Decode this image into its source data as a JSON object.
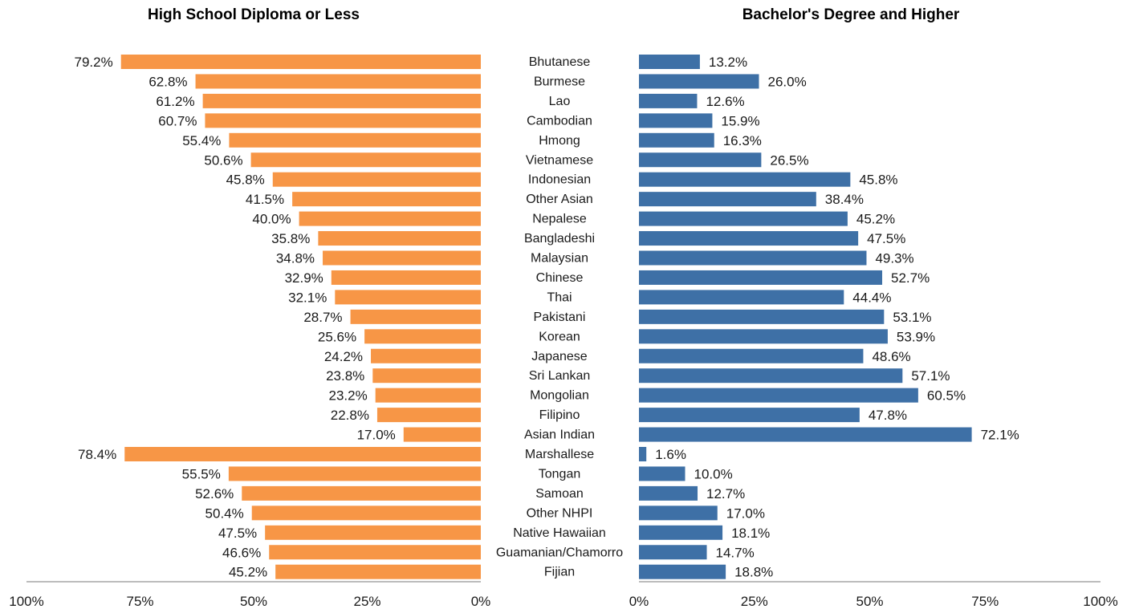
{
  "chart_data": [
    {
      "type": "bar",
      "orientation": "horizontal",
      "direction": "reversed",
      "title": "High School Diploma or Less",
      "categories": [
        "Bhutanese",
        "Burmese",
        "Lao",
        "Cambodian",
        "Hmong",
        "Vietnamese",
        "Indonesian",
        "Other Asian",
        "Nepalese",
        "Bangladeshi",
        "Malaysian",
        "Chinese",
        "Thai",
        "Pakistani",
        "Korean",
        "Japanese",
        "Sri Lankan",
        "Mongolian",
        "Filipino",
        "Asian Indian",
        "Marshallese",
        "Tongan",
        "Samoan",
        "Other NHPI",
        "Native Hawaiian",
        "Guamanian/Chamorro",
        "Fijian"
      ],
      "values": [
        79.2,
        62.8,
        61.2,
        60.7,
        55.4,
        50.6,
        45.8,
        41.5,
        40.0,
        35.8,
        34.8,
        32.9,
        32.1,
        28.7,
        25.6,
        24.2,
        23.8,
        23.2,
        22.8,
        17.0,
        78.4,
        55.5,
        52.6,
        50.4,
        47.5,
        46.6,
        45.2
      ],
      "labels": [
        "79.2%",
        "62.8%",
        "61.2%",
        "60.7%",
        "55.4%",
        "50.6%",
        "45.8%",
        "41.5%",
        "40.0%",
        "35.8%",
        "34.8%",
        "32.9%",
        "32.1%",
        "28.7%",
        "25.6%",
        "24.2%",
        "23.8%",
        "23.2%",
        "22.8%",
        "17.0%",
        "78.4%",
        "55.5%",
        "52.6%",
        "50.4%",
        "47.5%",
        "46.6%",
        "45.2%"
      ],
      "color": "#F79646",
      "xlim": [
        0,
        100
      ],
      "ticks": [
        "100%",
        "75%",
        "50%",
        "25%",
        "0%"
      ],
      "grid": false
    },
    {
      "type": "bar",
      "orientation": "horizontal",
      "title": "Bachelor's Degree and Higher",
      "categories": [
        "Bhutanese",
        "Burmese",
        "Lao",
        "Cambodian",
        "Hmong",
        "Vietnamese",
        "Indonesian",
        "Other Asian",
        "Nepalese",
        "Bangladeshi",
        "Malaysian",
        "Chinese",
        "Thai",
        "Pakistani",
        "Korean",
        "Japanese",
        "Sri Lankan",
        "Mongolian",
        "Filipino",
        "Asian Indian",
        "Marshallese",
        "Tongan",
        "Samoan",
        "Other NHPI",
        "Native Hawaiian",
        "Guamanian/Chamorro",
        "Fijian"
      ],
      "values": [
        13.2,
        26.0,
        12.6,
        15.9,
        16.3,
        26.5,
        45.8,
        38.4,
        45.2,
        47.5,
        49.3,
        52.7,
        44.4,
        53.1,
        53.9,
        48.6,
        57.1,
        60.5,
        47.8,
        72.1,
        1.6,
        10.0,
        12.7,
        17.0,
        18.1,
        14.7,
        18.8
      ],
      "labels": [
        "13.2%",
        "26.0%",
        "12.6%",
        "15.9%",
        "16.3%",
        "26.5%",
        "45.8%",
        "38.4%",
        "45.2%",
        "47.5%",
        "49.3%",
        "52.7%",
        "44.4%",
        "53.1%",
        "53.9%",
        "48.6%",
        "57.1%",
        "60.5%",
        "47.8%",
        "72.1%",
        "1.6%",
        "10.0%",
        "12.7%",
        "17.0%",
        "18.1%",
        "14.7%",
        "18.8%"
      ],
      "color": "#3E70A6",
      "xlim": [
        0,
        100
      ],
      "ticks": [
        "0%",
        "25%",
        "50%",
        "75%",
        "100%"
      ],
      "grid": false
    }
  ]
}
